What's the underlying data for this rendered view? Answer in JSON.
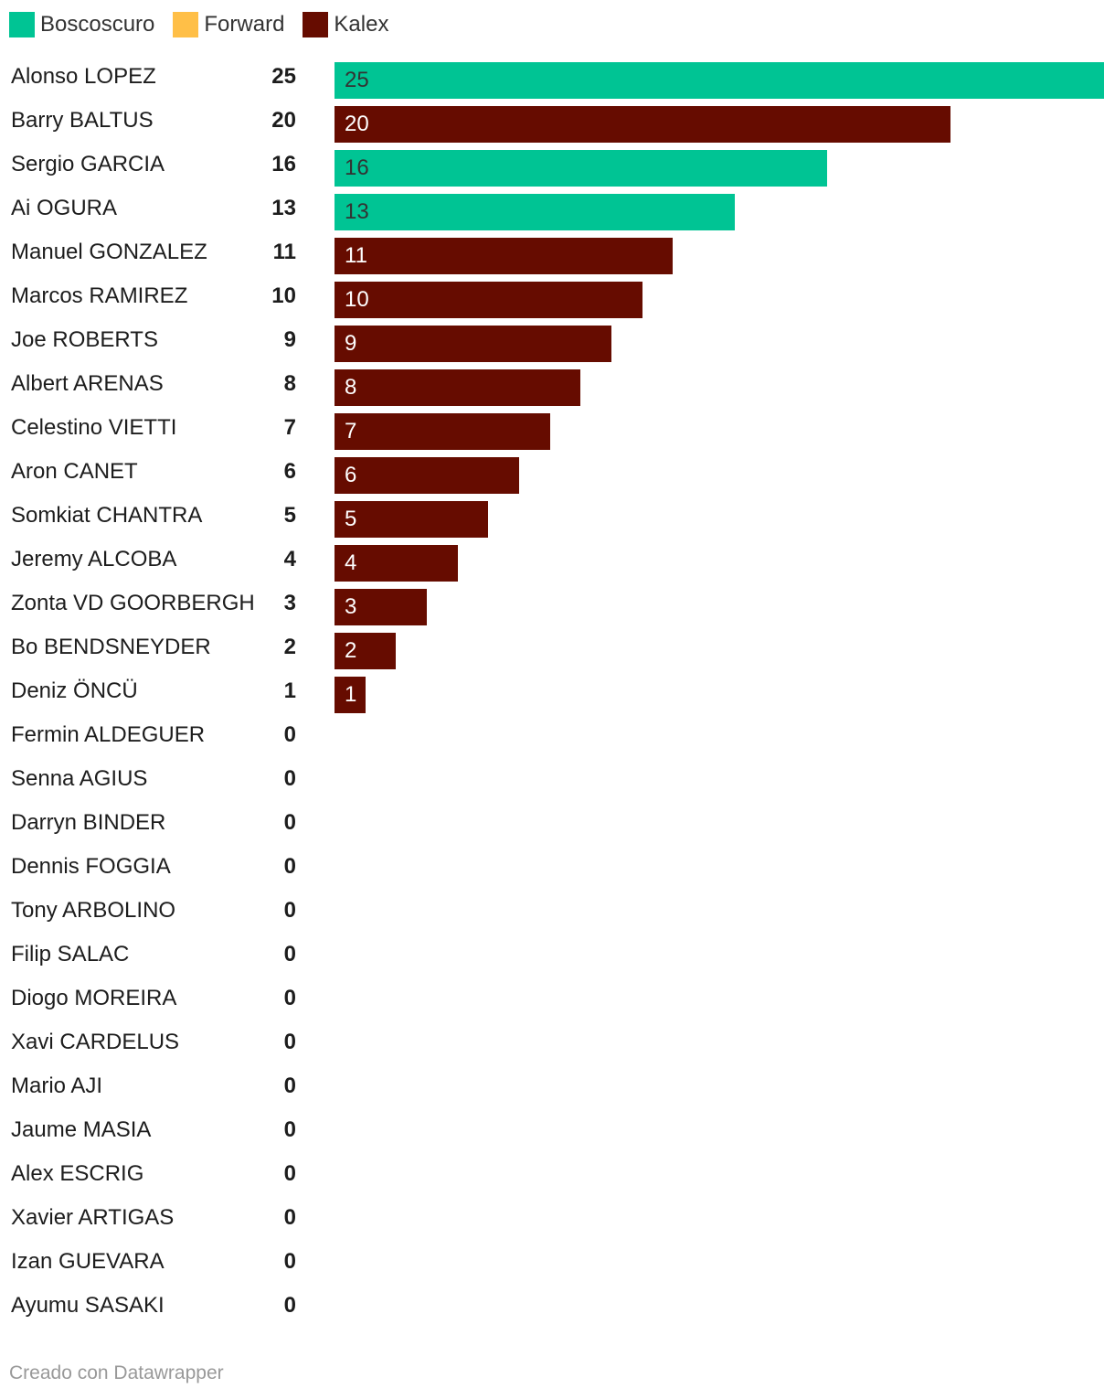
{
  "chart_data": {
    "type": "bar",
    "orientation": "horizontal",
    "legend": [
      {
        "name": "Boscoscuro",
        "color": "#00c494"
      },
      {
        "name": "Forward",
        "color": "#ffbf47"
      },
      {
        "name": "Kalex",
        "color": "#660c00"
      }
    ],
    "rows": [
      {
        "name": "Alonso LOPEZ",
        "value": 25,
        "team": "Boscoscuro"
      },
      {
        "name": "Barry BALTUS",
        "value": 20,
        "team": "Kalex"
      },
      {
        "name": "Sergio GARCIA",
        "value": 16,
        "team": "Boscoscuro"
      },
      {
        "name": "Ai OGURA",
        "value": 13,
        "team": "Boscoscuro"
      },
      {
        "name": "Manuel GONZALEZ",
        "value": 11,
        "team": "Kalex"
      },
      {
        "name": "Marcos RAMIREZ",
        "value": 10,
        "team": "Kalex"
      },
      {
        "name": "Joe ROBERTS",
        "value": 9,
        "team": "Kalex"
      },
      {
        "name": "Albert ARENAS",
        "value": 8,
        "team": "Kalex"
      },
      {
        "name": "Celestino VIETTI",
        "value": 7,
        "team": "Kalex"
      },
      {
        "name": "Aron CANET",
        "value": 6,
        "team": "Kalex"
      },
      {
        "name": "Somkiat CHANTRA",
        "value": 5,
        "team": "Kalex"
      },
      {
        "name": "Jeremy ALCOBA",
        "value": 4,
        "team": "Kalex"
      },
      {
        "name": "Zonta VD GOORBERGH",
        "value": 3,
        "team": "Kalex"
      },
      {
        "name": "Bo BENDSNEYDER",
        "value": 2,
        "team": "Kalex"
      },
      {
        "name": "Deniz ÖNCÜ",
        "value": 1,
        "team": "Kalex"
      },
      {
        "name": "Fermin ALDEGUER",
        "value": 0,
        "team": ""
      },
      {
        "name": "Senna AGIUS",
        "value": 0,
        "team": ""
      },
      {
        "name": "Darryn BINDER",
        "value": 0,
        "team": ""
      },
      {
        "name": "Dennis FOGGIA",
        "value": 0,
        "team": ""
      },
      {
        "name": "Tony ARBOLINO",
        "value": 0,
        "team": ""
      },
      {
        "name": "Filip SALAC",
        "value": 0,
        "team": ""
      },
      {
        "name": "Diogo MOREIRA",
        "value": 0,
        "team": ""
      },
      {
        "name": "Xavi CARDELUS",
        "value": 0,
        "team": ""
      },
      {
        "name": "Mario AJI",
        "value": 0,
        "team": ""
      },
      {
        "name": "Jaume MASIA",
        "value": 0,
        "team": ""
      },
      {
        "name": "Alex ESCRIG",
        "value": 0,
        "team": ""
      },
      {
        "name": "Xavier ARTIGAS",
        "value": 0,
        "team": ""
      },
      {
        "name": "Izan GUEVARA",
        "value": 0,
        "team": ""
      },
      {
        "name": "Ayumu SASAKI",
        "value": 0,
        "team": ""
      }
    ],
    "xlim": [
      0,
      25
    ],
    "grid": false
  },
  "footer": "Creado con Datawrapper"
}
